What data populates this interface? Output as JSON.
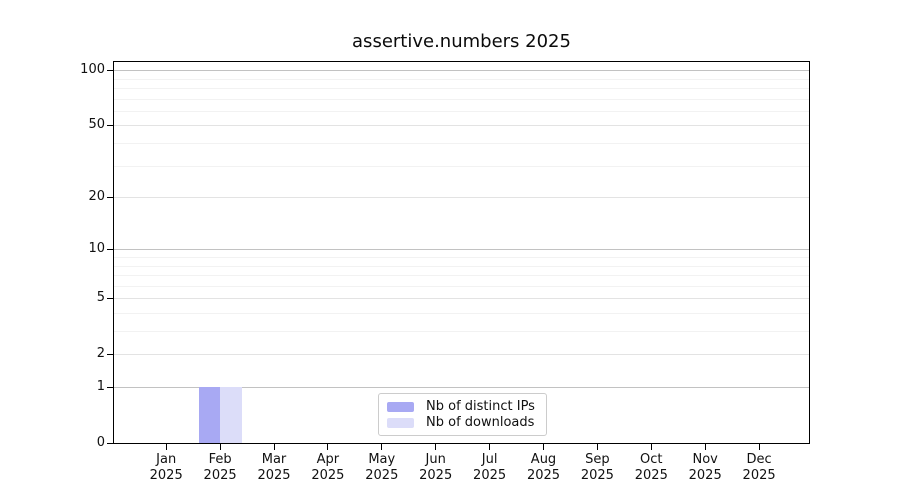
{
  "figure": {
    "background": "#ffffff",
    "axis_color": "#000000",
    "text_color": "#111111"
  },
  "chart_data": {
    "type": "bar",
    "title": "assertive.numbers 2025",
    "scale": "log1p",
    "grid": "on",
    "categories": [
      "Jan",
      "Feb",
      "Mar",
      "Apr",
      "May",
      "Jun",
      "Jul",
      "Aug",
      "Sep",
      "Oct",
      "Nov",
      "Dec"
    ],
    "category_sublabel": "2025",
    "series": [
      {
        "name": "Nb of distinct IPs",
        "color": "#a8a9f3",
        "values": [
          0,
          1,
          0,
          0,
          0,
          0,
          0,
          0,
          0,
          0,
          0,
          0
        ]
      },
      {
        "name": "Nb of downloads",
        "color": "#dcddf9",
        "values": [
          0,
          1,
          0,
          0,
          0,
          0,
          0,
          0,
          0,
          0,
          0,
          0
        ]
      }
    ],
    "xlabel": "",
    "ylabel": "",
    "ylim": [
      0,
      110
    ],
    "yticks": [
      0,
      1,
      2,
      5,
      10,
      20,
      50,
      100
    ],
    "emphasized_gridlines": [
      1,
      10,
      100
    ],
    "labeled_minor_gridlines": [
      2,
      5,
      20,
      50
    ],
    "minor_gridlines": [
      3,
      4,
      6,
      7,
      8,
      9,
      30,
      40,
      60,
      70,
      80,
      90
    ],
    "grid_colors": {
      "emphasized": "#c2c2c2",
      "labeled_minor": "#e3e3e3",
      "minor": "#f2f2f2"
    },
    "legend": {
      "position": "lower center"
    }
  }
}
